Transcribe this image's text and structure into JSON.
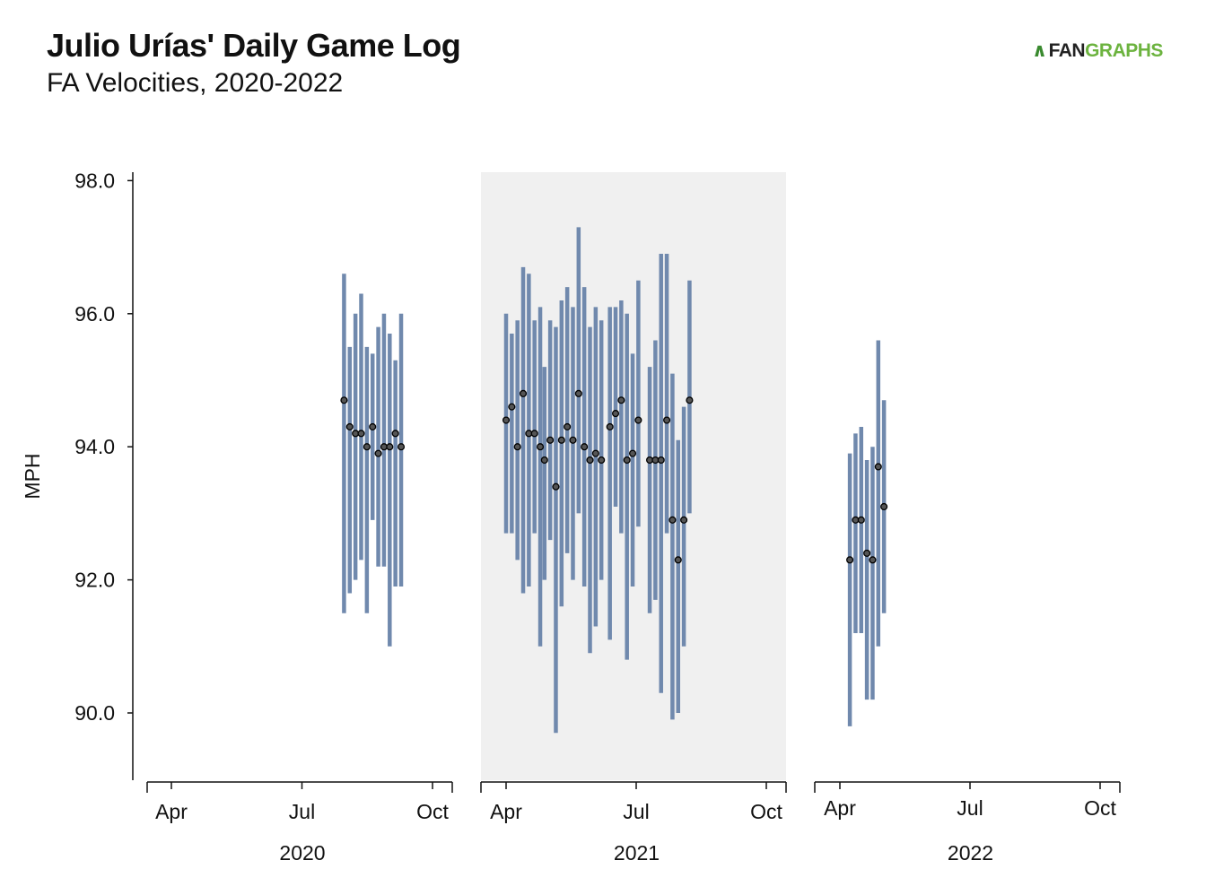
{
  "title": "Julio Urías' Daily Game Log",
  "subtitle": "FA Velocities, 2020-2022",
  "logo": {
    "mark": "∧",
    "fan": "FAN",
    "graphs": "GRAPHS"
  },
  "colors": {
    "bar": "#7089ad",
    "point_fill": "#555555",
    "point_stroke": "#000000",
    "highlight_panel": "#f0f0f0"
  },
  "chart_data": {
    "type": "scatter",
    "ylabel": "MPH",
    "ylim": [
      89.0,
      98.0
    ],
    "yticks": [
      "98.0",
      "96.0",
      "94.0",
      "92.0",
      "90.0"
    ],
    "xticks": [
      "Apr",
      "Jul",
      "Oct"
    ],
    "panels": [
      {
        "label": "2020",
        "highlight": false,
        "games": [
          {
            "date": "2020-07-31",
            "avg": 94.7,
            "min": 91.5,
            "max": 96.6
          },
          {
            "date": "2020-08-04",
            "avg": 94.3,
            "min": 91.8,
            "max": 95.5
          },
          {
            "date": "2020-08-08",
            "avg": 94.2,
            "min": 92.0,
            "max": 96.0
          },
          {
            "date": "2020-08-12",
            "avg": 94.2,
            "min": 92.3,
            "max": 96.3
          },
          {
            "date": "2020-08-16",
            "avg": 94.0,
            "min": 91.5,
            "max": 95.5
          },
          {
            "date": "2020-08-20",
            "avg": 94.3,
            "min": 92.9,
            "max": 95.4
          },
          {
            "date": "2020-08-24",
            "avg": 93.9,
            "min": 92.2,
            "max": 95.8
          },
          {
            "date": "2020-08-28",
            "avg": 94.0,
            "min": 92.2,
            "max": 96.0
          },
          {
            "date": "2020-09-01",
            "avg": 94.0,
            "min": 91.0,
            "max": 95.7
          },
          {
            "date": "2020-09-05",
            "avg": 94.2,
            "min": 91.9,
            "max": 95.3
          },
          {
            "date": "2020-09-09",
            "avg": 94.0,
            "min": 91.9,
            "max": 96.0
          }
        ]
      },
      {
        "label": "2021",
        "highlight": true,
        "games": [
          {
            "date": "2021-04-01",
            "avg": 94.4,
            "min": 92.7,
            "max": 96.0
          },
          {
            "date": "2021-04-05",
            "avg": 94.6,
            "min": 92.7,
            "max": 95.7
          },
          {
            "date": "2021-04-09",
            "avg": 94.0,
            "min": 92.3,
            "max": 95.9
          },
          {
            "date": "2021-04-13",
            "avg": 94.8,
            "min": 91.8,
            "max": 96.7
          },
          {
            "date": "2021-04-17",
            "avg": 94.2,
            "min": 91.9,
            "max": 96.6
          },
          {
            "date": "2021-04-21",
            "avg": 94.2,
            "min": 92.7,
            "max": 95.9
          },
          {
            "date": "2021-04-25",
            "avg": 94.0,
            "min": 91.0,
            "max": 96.1
          },
          {
            "date": "2021-04-28",
            "avg": 93.8,
            "min": 92.0,
            "max": 95.2
          },
          {
            "date": "2021-05-02",
            "avg": 94.1,
            "min": 92.6,
            "max": 95.9
          },
          {
            "date": "2021-05-06",
            "avg": 93.4,
            "min": 89.7,
            "max": 95.8
          },
          {
            "date": "2021-05-10",
            "avg": 94.1,
            "min": 91.6,
            "max": 96.2
          },
          {
            "date": "2021-05-14",
            "avg": 94.3,
            "min": 92.4,
            "max": 96.4
          },
          {
            "date": "2021-05-18",
            "avg": 94.1,
            "min": 92.0,
            "max": 96.1
          },
          {
            "date": "2021-05-22",
            "avg": 94.8,
            "min": 93.0,
            "max": 97.3
          },
          {
            "date": "2021-05-26",
            "avg": 94.0,
            "min": 91.9,
            "max": 96.4
          },
          {
            "date": "2021-05-30",
            "avg": 93.8,
            "min": 90.9,
            "max": 95.8
          },
          {
            "date": "2021-06-03",
            "avg": 93.9,
            "min": 91.3,
            "max": 96.1
          },
          {
            "date": "2021-06-07",
            "avg": 93.8,
            "min": 92.0,
            "max": 95.9
          },
          {
            "date": "2021-06-13",
            "avg": 94.3,
            "min": 91.1,
            "max": 96.1
          },
          {
            "date": "2021-06-17",
            "avg": 94.5,
            "min": 93.1,
            "max": 96.1
          },
          {
            "date": "2021-06-21",
            "avg": 94.7,
            "min": 92.7,
            "max": 96.2
          },
          {
            "date": "2021-06-25",
            "avg": 93.8,
            "min": 90.8,
            "max": 96.0
          },
          {
            "date": "2021-06-29",
            "avg": 93.9,
            "min": 91.9,
            "max": 95.4
          },
          {
            "date": "2021-07-03",
            "avg": 94.4,
            "min": 92.8,
            "max": 96.5
          },
          {
            "date": "2021-07-11",
            "avg": 93.8,
            "min": 91.5,
            "max": 95.2
          },
          {
            "date": "2021-07-15",
            "avg": 93.8,
            "min": 91.7,
            "max": 95.6
          },
          {
            "date": "2021-07-19",
            "avg": 93.8,
            "min": 90.3,
            "max": 96.9
          },
          {
            "date": "2021-07-23",
            "avg": 94.4,
            "min": 92.7,
            "max": 96.9
          },
          {
            "date": "2021-07-27",
            "avg": 92.9,
            "min": 89.9,
            "max": 95.1
          },
          {
            "date": "2021-07-31",
            "avg": 92.3,
            "min": 90.0,
            "max": 94.1
          },
          {
            "date": "2021-08-04",
            "avg": 92.9,
            "min": 91.0,
            "max": 94.6
          },
          {
            "date": "2021-08-08",
            "avg": 94.7,
            "min": 93.0,
            "max": 96.5
          }
        ]
      },
      {
        "label": "2022",
        "highlight": false,
        "games": [
          {
            "date": "2022-04-08",
            "avg": 92.3,
            "min": 89.8,
            "max": 93.9
          },
          {
            "date": "2022-04-12",
            "avg": 92.9,
            "min": 91.2,
            "max": 94.2
          },
          {
            "date": "2022-04-16",
            "avg": 92.9,
            "min": 91.2,
            "max": 94.3
          },
          {
            "date": "2022-04-20",
            "avg": 92.4,
            "min": 90.2,
            "max": 93.8
          },
          {
            "date": "2022-04-24",
            "avg": 92.3,
            "min": 90.2,
            "max": 94.0
          },
          {
            "date": "2022-04-28",
            "avg": 93.7,
            "min": 91.0,
            "max": 95.6
          },
          {
            "date": "2022-05-02",
            "avg": 93.1,
            "min": 91.5,
            "max": 94.7
          }
        ]
      }
    ]
  }
}
